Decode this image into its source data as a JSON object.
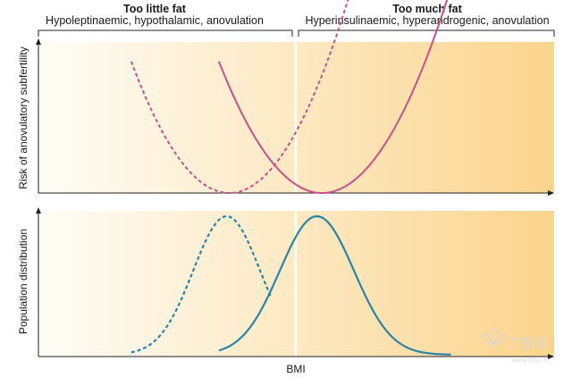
{
  "header": {
    "left": {
      "title": "Too little fat",
      "subtitle": "Hypoleptinaemic, hypothalamic, anovulation"
    },
    "right": {
      "title": "Too much fat",
      "subtitle": "Hyperinsulinaemic, hyperandrogenic, anovulation"
    }
  },
  "colors": {
    "magenta": "#c9508a",
    "teal": "#2a84a8",
    "gradient_start": "#fffdf7",
    "gradient_end": "#fbd48c",
    "axis": "#222222"
  },
  "chart_data": [
    {
      "type": "line",
      "panel": "top",
      "ylabel": "Risk of anovulatory subfertility",
      "xlabel": "",
      "x_range": [
        0,
        100
      ],
      "y_range": [
        0,
        100
      ],
      "series": [
        {
          "name": "dashed",
          "style": "dashed",
          "color": "magenta",
          "curve": "parabola",
          "vertex_x": 37,
          "x_from": 18,
          "x_to": 63,
          "height_at_left": 92
        },
        {
          "name": "solid",
          "style": "solid",
          "color": "magenta",
          "curve": "parabola",
          "vertex_x": 55,
          "x_from": 35,
          "x_to": 80,
          "height_at_left": 92
        }
      ]
    },
    {
      "type": "line",
      "panel": "bottom",
      "ylabel": "Population distribution",
      "xlabel": "BMI",
      "x_range": [
        0,
        100
      ],
      "y_range": [
        0,
        100
      ],
      "series": [
        {
          "name": "dashed",
          "style": "dashed",
          "color": "teal",
          "curve": "bell",
          "peak_x": 36.5,
          "peak_y": 100,
          "sd": 6.5,
          "x_from": 18,
          "x_to": 45
        },
        {
          "name": "solid",
          "style": "solid",
          "color": "teal",
          "curve": "bell",
          "peak_x": 54,
          "peak_y": 100,
          "sd": 7.2,
          "x_from": 35,
          "x_to": 80
        }
      ]
    }
  ],
  "watermark": {
    "text": "丁香园",
    "url": "www.dxy.cn"
  }
}
